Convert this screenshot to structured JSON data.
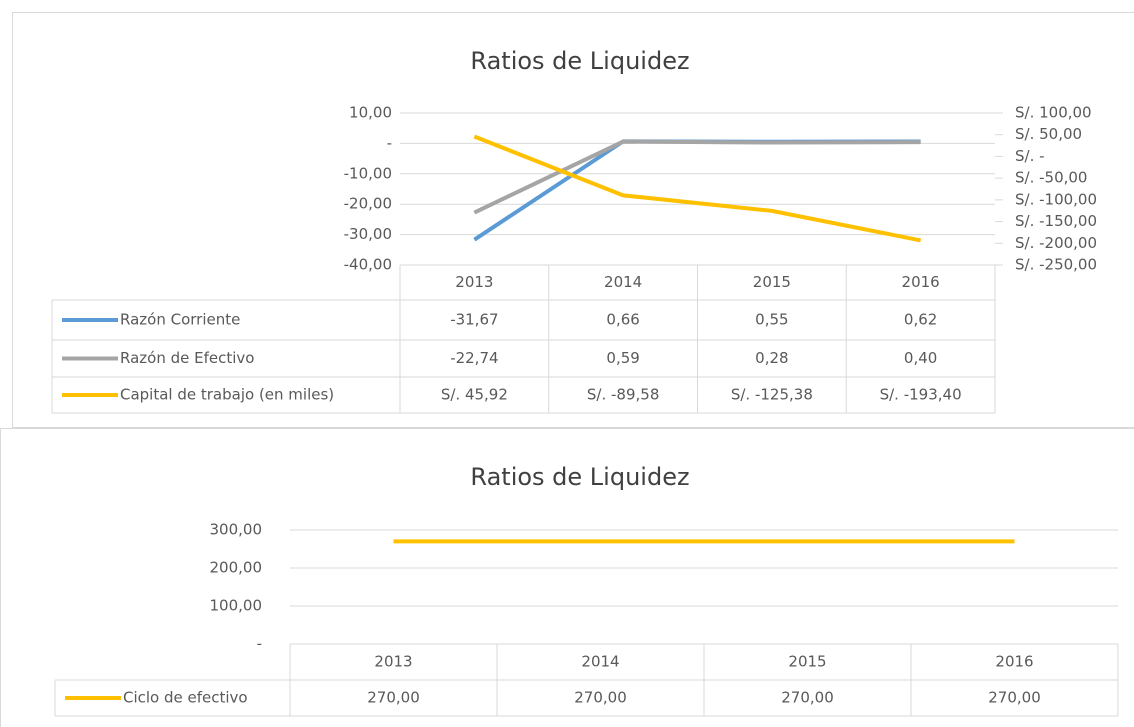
{
  "chart_data": [
    {
      "type": "line",
      "title": "Ratios de Liquidez",
      "categories": [
        "2013",
        "2014",
        "2015",
        "2016"
      ],
      "series": [
        {
          "name": "Razón Corriente",
          "color": "#5b9bd5",
          "values": [
            -31.67,
            0.66,
            0.55,
            0.62
          ],
          "value_labels": [
            "-31,67",
            "0,66",
            "0,55",
            "0,62"
          ]
        },
        {
          "name": "Razón de Efectivo",
          "color": "#a5a5a5",
          "values": [
            -22.74,
            0.59,
            0.28,
            0.4
          ],
          "value_labels": [
            "-22,74",
            "0,59",
            "0,28",
            "0,40"
          ]
        },
        {
          "name": "Capital de trabajo (en miles)",
          "color": "#ffc000",
          "axis": "y2",
          "values": [
            45.92,
            -89.58,
            -125.38,
            -193.4
          ],
          "value_labels": [
            "S/. 45,92",
            "S/. -89,58",
            "S/. -125,38",
            "S/. -193,40"
          ]
        }
      ],
      "ylim": [
        -40,
        10
      ],
      "yticks": [
        {
          "value": 10,
          "label": "10,00"
        },
        {
          "value": 0,
          "label": "-"
        },
        {
          "value": -10,
          "label": "-10,00"
        },
        {
          "value": -20,
          "label": "-20,00"
        },
        {
          "value": -30,
          "label": "-30,00"
        },
        {
          "value": -40,
          "label": "-40,00"
        }
      ],
      "y2lim": [
        -250,
        100
      ],
      "y2ticks": [
        {
          "value": 100,
          "label": "S/. 100,00"
        },
        {
          "value": 50,
          "label": "S/. 50,00"
        },
        {
          "value": 0,
          "label": "S/. -"
        },
        {
          "value": -50,
          "label": "S/. -50,00"
        },
        {
          "value": -100,
          "label": "S/. -100,00"
        },
        {
          "value": -150,
          "label": "S/. -150,00"
        },
        {
          "value": -200,
          "label": "S/. -200,00"
        },
        {
          "value": -250,
          "label": "S/. -250,00"
        }
      ],
      "grid": true
    },
    {
      "type": "line",
      "title": "Ratios de Liquidez",
      "categories": [
        "2013",
        "2014",
        "2015",
        "2016"
      ],
      "series": [
        {
          "name": "Ciclo de efectivo",
          "color": "#ffc000",
          "values": [
            270,
            270,
            270,
            270
          ],
          "value_labels": [
            "270,00",
            "270,00",
            "270,00",
            "270,00"
          ]
        }
      ],
      "ylim": [
        0,
        300
      ],
      "yticks": [
        {
          "value": 300,
          "label": "300,00"
        },
        {
          "value": 200,
          "label": "200,00"
        },
        {
          "value": 100,
          "label": "100,00"
        },
        {
          "value": 0,
          "label": "-"
        }
      ],
      "grid": true
    }
  ]
}
